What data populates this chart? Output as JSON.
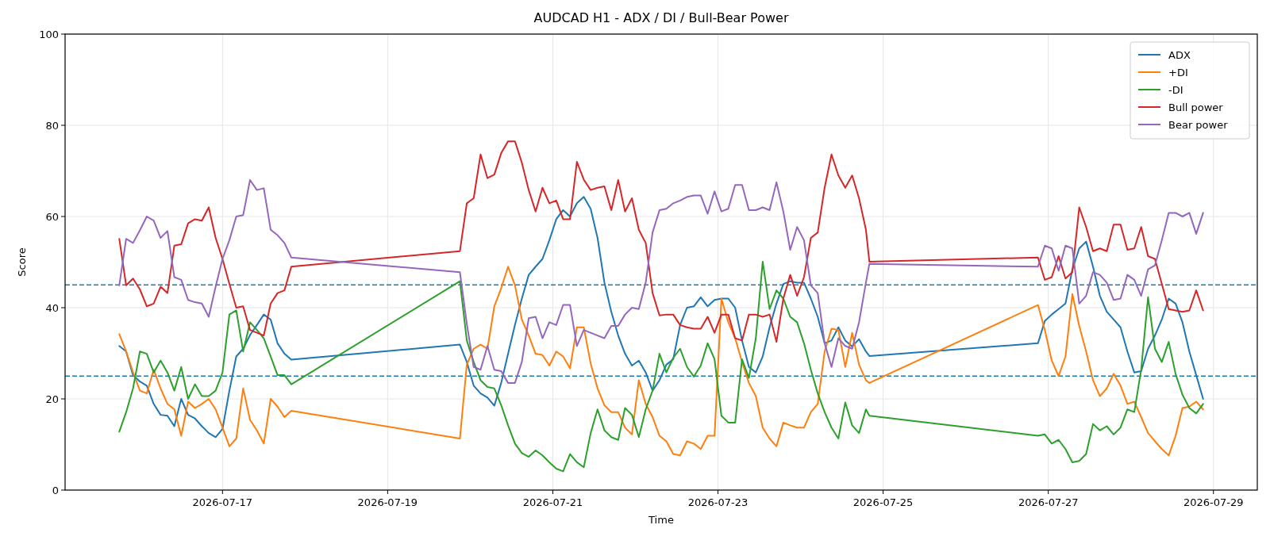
{
  "chart_data": {
    "type": "line",
    "title": "AUDCAD H1 - ADX / DI / Bull-Bear Power",
    "xlabel": "Time",
    "ylabel": "Score",
    "x": [
      "2026-07-15T18:00",
      "2026-07-15T20:00",
      "2026-07-15T22:00",
      "2026-07-16T00:00",
      "2026-07-16T02:00",
      "2026-07-16T04:00",
      "2026-07-16T06:00",
      "2026-07-16T08:00",
      "2026-07-16T10:00",
      "2026-07-16T12:00",
      "2026-07-16T14:00",
      "2026-07-16T16:00",
      "2026-07-16T18:00",
      "2026-07-16T20:00",
      "2026-07-16T22:00",
      "2026-07-17T00:00",
      "2026-07-17T02:00",
      "2026-07-17T04:00",
      "2026-07-17T06:00",
      "2026-07-17T08:00",
      "2026-07-17T10:00",
      "2026-07-17T12:00",
      "2026-07-17T14:00",
      "2026-07-17T16:00",
      "2026-07-17T18:00",
      "2026-07-17T20:00",
      "2026-07-19T21:00",
      "2026-07-19T23:00",
      "2026-07-20T01:00",
      "2026-07-20T03:00",
      "2026-07-20T05:00",
      "2026-07-20T07:00",
      "2026-07-20T09:00",
      "2026-07-20T11:00",
      "2026-07-20T13:00",
      "2026-07-20T15:00",
      "2026-07-20T17:00",
      "2026-07-20T19:00",
      "2026-07-20T21:00",
      "2026-07-20T23:00",
      "2026-07-21T01:00",
      "2026-07-21T03:00",
      "2026-07-21T05:00",
      "2026-07-21T07:00",
      "2026-07-21T09:00",
      "2026-07-21T11:00",
      "2026-07-21T13:00",
      "2026-07-21T15:00",
      "2026-07-21T17:00",
      "2026-07-21T19:00",
      "2026-07-21T21:00",
      "2026-07-21T23:00",
      "2026-07-22T01:00",
      "2026-07-22T03:00",
      "2026-07-22T05:00",
      "2026-07-22T07:00",
      "2026-07-22T09:00",
      "2026-07-22T11:00",
      "2026-07-22T13:00",
      "2026-07-22T15:00",
      "2026-07-22T17:00",
      "2026-07-22T19:00",
      "2026-07-22T21:00",
      "2026-07-22T23:00",
      "2026-07-23T01:00",
      "2026-07-23T03:00",
      "2026-07-23T05:00",
      "2026-07-23T07:00",
      "2026-07-23T09:00",
      "2026-07-23T11:00",
      "2026-07-23T13:00",
      "2026-07-23T15:00",
      "2026-07-23T17:00",
      "2026-07-23T19:00",
      "2026-07-23T21:00",
      "2026-07-23T23:00",
      "2026-07-24T01:00",
      "2026-07-24T03:00",
      "2026-07-24T05:00",
      "2026-07-24T07:00",
      "2026-07-24T09:00",
      "2026-07-24T11:00",
      "2026-07-24T13:00",
      "2026-07-24T15:00",
      "2026-07-24T17:00",
      "2026-07-24T19:00",
      "2026-07-24T20:00",
      "2026-07-26T21:00",
      "2026-07-26T23:00",
      "2026-07-27T01:00",
      "2026-07-27T03:00",
      "2026-07-27T05:00",
      "2026-07-27T07:00",
      "2026-07-27T09:00",
      "2026-07-27T11:00",
      "2026-07-27T13:00",
      "2026-07-27T15:00",
      "2026-07-27T17:00",
      "2026-07-27T19:00",
      "2026-07-27T21:00",
      "2026-07-27T23:00",
      "2026-07-28T01:00",
      "2026-07-28T03:00",
      "2026-07-28T05:00",
      "2026-07-28T07:00",
      "2026-07-28T09:00",
      "2026-07-28T11:00",
      "2026-07-28T13:00",
      "2026-07-28T15:00",
      "2026-07-28T17:00",
      "2026-07-28T19:00",
      "2026-07-28T21:00"
    ],
    "series": [
      {
        "name": "ADX",
        "color": "#1f77b4",
        "values": [
          31.6,
          30.4,
          25.2,
          23.8,
          22.9,
          18.9,
          16.5,
          16.3,
          14.0,
          20.0,
          16.5,
          15.7,
          14.0,
          12.5,
          11.6,
          13.4,
          21.8,
          29.3,
          31.0,
          34.0,
          36.2,
          38.5,
          37.4,
          32.2,
          29.9,
          28.6,
          31.9,
          28.1,
          22.9,
          21.2,
          20.3,
          18.5,
          23.5,
          29.9,
          36.2,
          42.0,
          47.2,
          49.0,
          50.7,
          54.8,
          59.4,
          61.4,
          60.0,
          62.9,
          64.3,
          61.7,
          55.3,
          45.5,
          39.1,
          33.9,
          29.9,
          27.3,
          28.4,
          25.8,
          21.8,
          24.1,
          27.5,
          28.7,
          36.2,
          40.0,
          40.3,
          42.3,
          40.3,
          41.7,
          42.0,
          42.0,
          40.0,
          32.8,
          27.0,
          25.8,
          29.3,
          35.7,
          40.9,
          45.2,
          45.8,
          45.5,
          45.5,
          42.0,
          38.0,
          32.2,
          32.8,
          35.7,
          32.8,
          31.5,
          33.1,
          30.4,
          29.4,
          32.2,
          37.1,
          38.5,
          39.7,
          40.9,
          48.4,
          53.0,
          54.5,
          49.0,
          42.6,
          39.1,
          37.4,
          35.7,
          30.4,
          25.8,
          26.1,
          31.0,
          33.9,
          37.4,
          42.0,
          40.9,
          36.8,
          30.4,
          25.2,
          20.0
        ]
      },
      {
        "name": "+DI",
        "color": "#ff7f0e",
        "values": [
          34.2,
          30.4,
          25.8,
          21.8,
          21.2,
          26.4,
          22.3,
          18.9,
          17.7,
          11.9,
          19.4,
          18.0,
          18.9,
          20.0,
          17.7,
          13.7,
          9.6,
          11.3,
          22.3,
          15.4,
          13.1,
          10.2,
          20.0,
          18.3,
          16.0,
          17.4,
          11.3,
          27.5,
          31.0,
          31.9,
          31.0,
          40.3,
          44.3,
          49.0,
          44.9,
          37.4,
          33.9,
          29.9,
          29.6,
          27.3,
          30.4,
          29.3,
          26.7,
          35.7,
          35.7,
          27.8,
          22.3,
          18.6,
          17.1,
          17.1,
          13.7,
          12.2,
          24.1,
          18.9,
          16.0,
          11.9,
          10.7,
          7.9,
          7.6,
          10.7,
          10.2,
          9.0,
          11.9,
          11.9,
          42.0,
          36.8,
          33.3,
          28.1,
          23.5,
          20.6,
          13.7,
          11.3,
          9.6,
          14.8,
          14.2,
          13.7,
          13.7,
          17.1,
          18.9,
          30.4,
          35.4,
          35.1,
          27.0,
          34.5,
          27.5,
          24.1,
          23.5,
          40.6,
          35.1,
          28.4,
          25.0,
          29.3,
          43.0,
          36.0,
          30.4,
          24.1,
          20.6,
          22.3,
          25.5,
          22.9,
          18.9,
          19.4,
          16.0,
          12.5,
          10.7,
          9.0,
          7.6,
          11.9,
          18.0,
          18.3,
          19.4,
          17.7
        ]
      },
      {
        "name": "-DI",
        "color": "#2ca02c",
        "values": [
          12.8,
          17.1,
          22.3,
          30.4,
          29.9,
          25.8,
          28.4,
          25.8,
          21.8,
          27.0,
          20.0,
          23.2,
          20.6,
          20.6,
          21.8,
          25.8,
          38.5,
          39.4,
          30.4,
          36.8,
          35.1,
          33.3,
          29.3,
          25.2,
          25.2,
          23.2,
          45.8,
          32.8,
          28.1,
          24.1,
          22.6,
          22.3,
          18.6,
          14.2,
          10.2,
          8.1,
          7.3,
          8.7,
          7.6,
          6.1,
          4.7,
          4.1,
          7.9,
          6.1,
          5.0,
          12.5,
          17.7,
          13.1,
          11.6,
          11.0,
          18.0,
          16.5,
          11.6,
          17.7,
          21.8,
          29.9,
          25.8,
          29.0,
          31.0,
          27.0,
          24.9,
          27.3,
          32.2,
          28.7,
          16.3,
          14.8,
          14.8,
          28.7,
          24.6,
          33.3,
          50.1,
          39.7,
          43.8,
          42.0,
          38.0,
          36.8,
          32.2,
          26.4,
          21.2,
          17.1,
          13.7,
          11.3,
          19.2,
          14.2,
          12.5,
          17.7,
          16.3,
          11.9,
          12.2,
          10.2,
          11.0,
          9.0,
          6.1,
          6.4,
          7.9,
          14.5,
          13.1,
          14.0,
          12.2,
          13.7,
          17.7,
          17.1,
          26.4,
          42.3,
          31.0,
          28.1,
          32.5,
          25.5,
          20.9,
          18.0,
          16.8,
          18.9
        ]
      },
      {
        "name": "Bull power",
        "color": "#d62728",
        "values": [
          55.1,
          44.9,
          46.4,
          44.0,
          40.3,
          40.9,
          44.6,
          43.2,
          53.6,
          53.9,
          58.5,
          59.4,
          59.1,
          62.0,
          55.3,
          50.7,
          45.2,
          40.0,
          40.3,
          35.1,
          34.5,
          33.9,
          40.9,
          43.2,
          43.8,
          49.0,
          52.4,
          62.9,
          64.0,
          73.6,
          68.4,
          69.2,
          73.9,
          76.5,
          76.5,
          71.8,
          65.8,
          61.1,
          66.3,
          62.9,
          63.5,
          59.4,
          59.4,
          72.0,
          68.1,
          65.8,
          66.3,
          66.6,
          61.4,
          68.0,
          61.1,
          64.0,
          57.1,
          54.2,
          43.2,
          38.3,
          38.5,
          38.5,
          36.2,
          35.7,
          35.4,
          35.4,
          38.0,
          34.5,
          38.5,
          38.5,
          33.3,
          32.8,
          38.5,
          38.5,
          38.0,
          38.5,
          32.5,
          42.0,
          47.2,
          42.6,
          46.7,
          55.3,
          56.5,
          66.3,
          73.6,
          69.0,
          66.3,
          69.0,
          64.0,
          57.1,
          50.1,
          51.0,
          46.1,
          46.7,
          51.3,
          46.4,
          47.8,
          62.0,
          57.7,
          52.4,
          53.0,
          52.4,
          58.2,
          58.2,
          52.7,
          53.0,
          57.7,
          51.3,
          50.7,
          45.2,
          39.7,
          39.4,
          39.1,
          39.4,
          43.8,
          39.4
        ]
      },
      {
        "name": "Bear power",
        "color": "#9467bd",
        "values": [
          44.9,
          55.1,
          54.2,
          57.0,
          60.0,
          59.1,
          55.3,
          56.8,
          46.7,
          46.1,
          41.7,
          41.2,
          40.9,
          38.0,
          44.6,
          50.7,
          54.8,
          60.0,
          60.3,
          68.0,
          65.8,
          66.2,
          57.1,
          55.9,
          54.2,
          51.0,
          47.8,
          36.5,
          27.0,
          26.4,
          31.6,
          26.4,
          26.1,
          23.5,
          23.5,
          28.1,
          37.7,
          38.0,
          33.3,
          36.8,
          36.2,
          40.6,
          40.6,
          31.6,
          35.1,
          34.5,
          33.9,
          33.3,
          36.0,
          36.0,
          38.5,
          40.0,
          39.7,
          45.5,
          56.5,
          61.4,
          61.7,
          62.9,
          63.5,
          64.3,
          64.6,
          64.6,
          60.6,
          65.5,
          61.1,
          61.7,
          66.9,
          66.9,
          61.4,
          61.4,
          62.0,
          61.4,
          67.5,
          61.1,
          52.7,
          57.7,
          54.8,
          44.9,
          43.2,
          32.2,
          27.0,
          33.3,
          31.6,
          31.0,
          36.8,
          45.5,
          49.6,
          49.0,
          53.6,
          53.0,
          48.1,
          53.6,
          53.0,
          40.9,
          42.6,
          47.8,
          47.2,
          45.5,
          41.7,
          42.0,
          47.2,
          46.1,
          42.6,
          48.4,
          49.3,
          54.8,
          60.8,
          60.8,
          60.0,
          60.8,
          56.2,
          60.8
        ]
      }
    ],
    "xlim": [
      "2026-07-15T02:15",
      "2026-07-29T12:45"
    ],
    "xticks": [
      "2026-07-17",
      "2026-07-19",
      "2026-07-21",
      "2026-07-23",
      "2026-07-25",
      "2026-07-27",
      "2026-07-29"
    ],
    "ylim": [
      0,
      100
    ],
    "yticks": [
      0,
      20,
      40,
      60,
      80,
      100
    ],
    "ref_lines": [
      {
        "axis": "y",
        "value": 45,
        "color": "#1f77b4",
        "line_style": "dashed"
      },
      {
        "axis": "y",
        "value": 25,
        "color": "#1f77b4",
        "line_style": "dashed"
      }
    ],
    "grid": true,
    "legend": "top right"
  }
}
